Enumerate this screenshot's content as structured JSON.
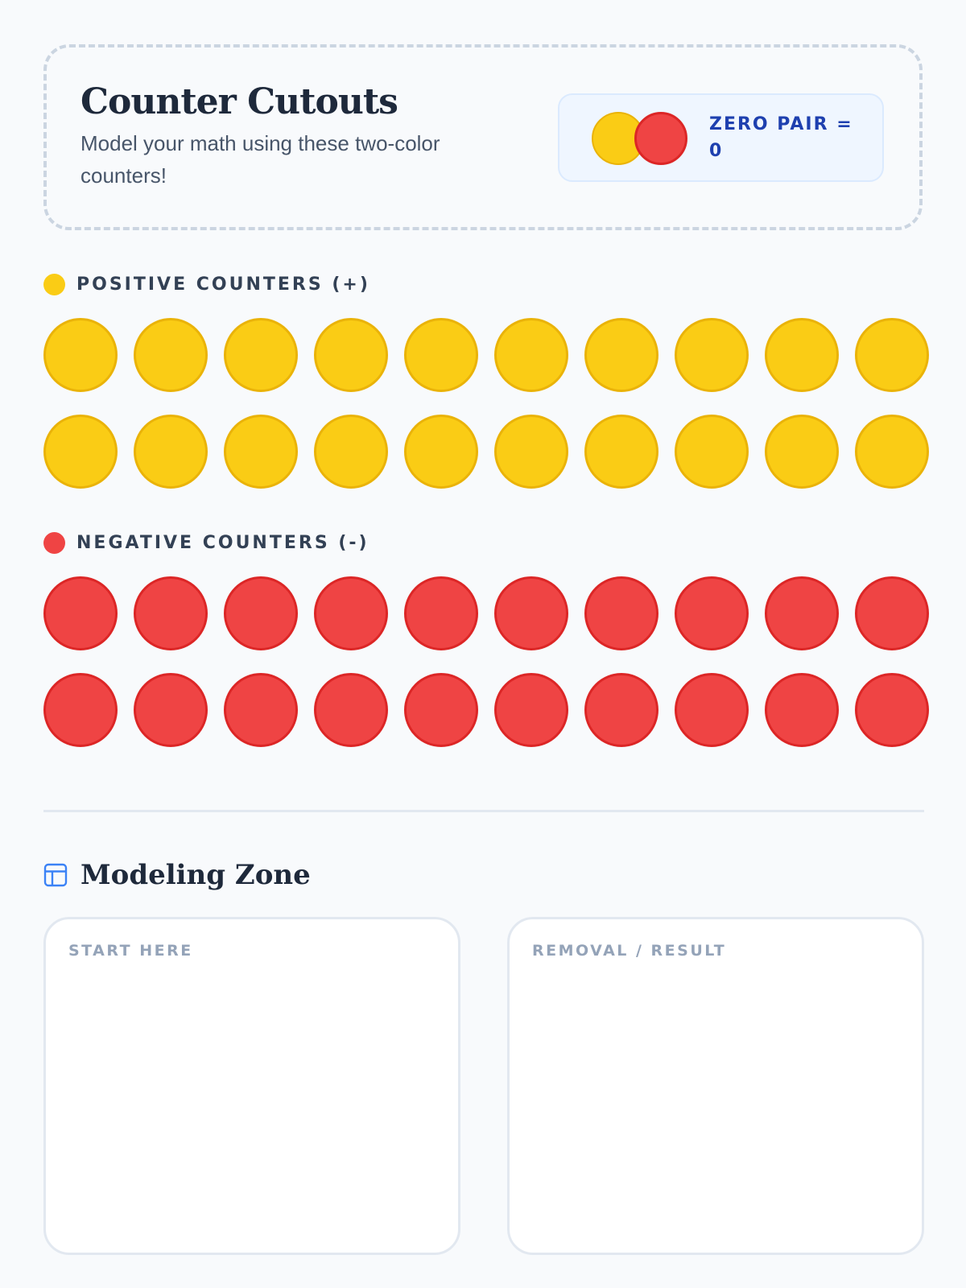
{
  "header": {
    "title": "Counter Cutouts",
    "subtitle": "Model your math using these two-color counters!",
    "zero_pair_label": "ZERO PAIR = 0"
  },
  "positive": {
    "label": "POSITIVE COUNTERS (+)",
    "count": 20,
    "color": "#facc15"
  },
  "negative": {
    "label": "NEGATIVE COUNTERS (-)",
    "count": 20,
    "color": "#ef4444"
  },
  "modeling_zone": {
    "title": "Modeling Zone",
    "boxes": [
      {
        "label": "START HERE"
      },
      {
        "label": "REMOVAL / RESULT"
      }
    ]
  }
}
